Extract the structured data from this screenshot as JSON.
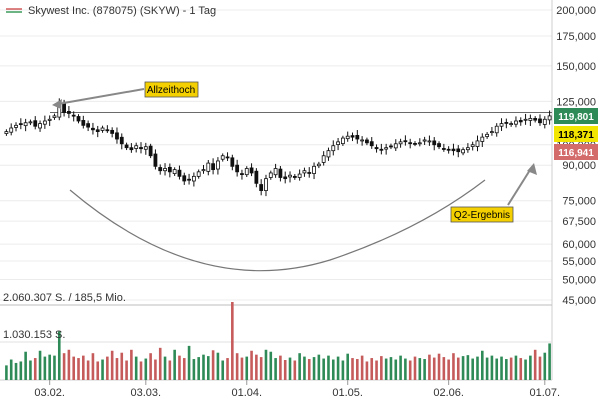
{
  "title": "Skywest Inc. (878075) (SKYW) - 1 Tag",
  "volume_labels": {
    "top": "2.060.307 S. / 185,5 Mio.",
    "mid": "1.030.153 S."
  },
  "price_tags": [
    {
      "value": "119,801",
      "color": "#2e8b57",
      "text_color": "#ffffff"
    },
    {
      "value": "118,371",
      "color": "#f2e600",
      "text_color": "#000000"
    },
    {
      "value": "116,941",
      "color": "#d36b6b",
      "text_color": "#ffffff"
    }
  ],
  "annotations": [
    {
      "text": "Allzeithoch"
    },
    {
      "text": "Q2-Ergebnis"
    }
  ],
  "chart_data": {
    "type": "candlestick",
    "title": "Skywest Inc. (878075) (SKYW) - 1 Tag",
    "y_scale": "log",
    "ylim": [
      45000,
      200000
    ],
    "y_ticks": [
      {
        "value": 200000,
        "label": "200,000"
      },
      {
        "value": 175000,
        "label": "175,000"
      },
      {
        "value": 150000,
        "label": "150,000"
      },
      {
        "value": 125000,
        "label": "125,000"
      },
      {
        "value": 100000,
        "label": "100,000"
      },
      {
        "value": 90000,
        "label": "90,000"
      },
      {
        "value": 75000,
        "label": "75,000"
      },
      {
        "value": 67500,
        "label": "67,500"
      },
      {
        "value": 60000,
        "label": "60,000"
      },
      {
        "value": 55000,
        "label": "55,000"
      },
      {
        "value": 50000,
        "label": "50,000"
      },
      {
        "value": 45000,
        "label": "45,000"
      }
    ],
    "x_ticks": [
      {
        "index": 9,
        "label": "03.02."
      },
      {
        "index": 29,
        "label": "03.03."
      },
      {
        "index": 50,
        "label": "01.04."
      },
      {
        "index": 71,
        "label": "01.05."
      },
      {
        "index": 92,
        "label": "02.06."
      },
      {
        "index": 112,
        "label": "01.07."
      }
    ],
    "reference_line": 118000,
    "close": [
      107000,
      109000,
      110500,
      111000,
      112000,
      112500,
      110000,
      111500,
      113000,
      114000,
      116000,
      124000,
      118000,
      117500,
      116000,
      113000,
      110500,
      109500,
      108000,
      107000,
      109000,
      108000,
      106000,
      103000,
      100500,
      98500,
      97500,
      99500,
      98000,
      99000,
      94500,
      89500,
      87500,
      88500,
      87000,
      88000,
      85000,
      83000,
      83500,
      85000,
      87000,
      88000,
      91000,
      88000,
      92000,
      94500,
      93500,
      89500,
      87000,
      86000,
      88500,
      86500,
      82000,
      79000,
      84000,
      86500,
      88500,
      84500,
      84000,
      85500,
      84500,
      86000,
      87500,
      86500,
      89500,
      90500,
      94500,
      97000,
      99500,
      101500,
      103500,
      104500,
      104000,
      103000,
      102500,
      101000,
      99500,
      98000,
      97500,
      98500,
      99000,
      100500,
      101500,
      102000,
      101000,
      100500,
      101000,
      102500,
      102000,
      100000,
      99000,
      98000,
      97500,
      97000,
      96500,
      97500,
      98500,
      100000,
      102000,
      104000,
      105500,
      107000,
      110000,
      111500,
      112000,
      111500,
      113000,
      112500,
      114000,
      114500,
      113500,
      112000,
      114000,
      116000
    ],
    "volume": [
      30,
      42,
      35,
      38,
      58,
      40,
      45,
      60,
      48,
      52,
      50,
      100,
      55,
      62,
      48,
      45,
      50,
      40,
      55,
      38,
      42,
      48,
      60,
      45,
      56,
      40,
      62,
      48,
      38,
      44,
      55,
      42,
      66,
      48,
      40,
      62,
      50,
      45,
      70,
      43,
      47,
      52,
      49,
      61,
      56,
      40,
      45,
      160,
      55,
      46,
      48,
      60,
      52,
      47,
      62,
      58,
      45,
      50,
      41,
      46,
      40,
      55,
      48,
      43,
      47,
      52,
      44,
      50,
      42,
      48,
      40,
      54,
      45,
      43,
      50,
      38,
      45,
      40,
      49,
      44,
      47,
      42,
      50,
      44,
      40,
      48,
      45,
      43,
      52,
      46,
      54,
      47,
      42,
      55,
      46,
      49,
      51,
      44,
      48,
      60,
      46,
      50,
      44,
      48,
      43,
      46,
      50,
      45,
      42,
      50,
      62,
      48,
      56,
      75
    ]
  }
}
